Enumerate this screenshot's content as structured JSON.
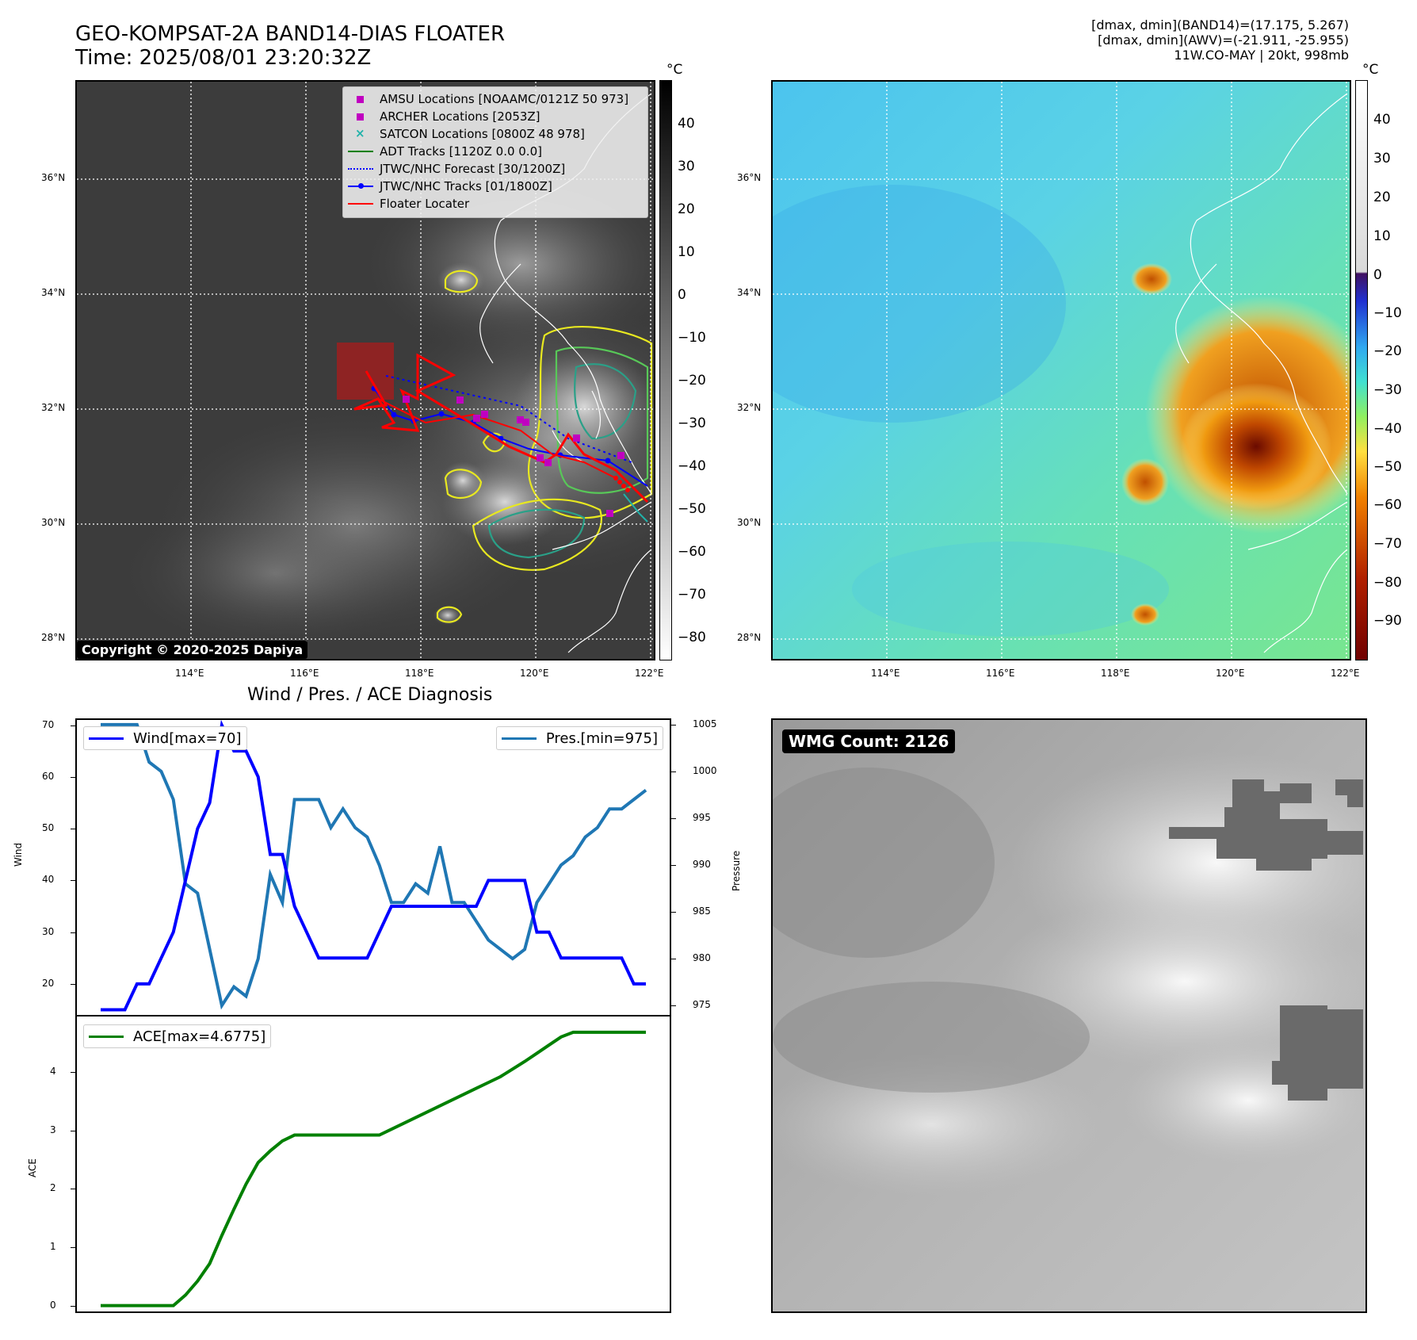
{
  "header": {
    "title": "GEO-KOMPSAT-2A BAND14-DIAS FLOATER",
    "time": "Time: 2025/08/01 23:20:32Z",
    "info_line1": "[dmax, dmin](BAND14)=(17.175, 5.267)",
    "info_line2": "[dmax, dmin](AWV)=(-21.911, -25.955)",
    "info_line3": "11W.CO-MAY | 20kt, 998mb"
  },
  "map": {
    "lat_ticks": [
      "36°N",
      "34°N",
      "32°N",
      "30°N",
      "28°N"
    ],
    "lon_ticks": [
      "114°E",
      "116°E",
      "118°E",
      "120°E",
      "122°E"
    ],
    "copyright": "Copyright © 2020-2025 Dapiya",
    "unit": "°C",
    "legend": [
      {
        "label": "AMSU Locations [NOAAMC/0121Z 50 973]",
        "symbol": "square",
        "color": "#c000c0"
      },
      {
        "label": "ARCHER Locations [2053Z]",
        "symbol": "square",
        "color": "#c000c0"
      },
      {
        "label": "SATCON Locations [0800Z 48 978]",
        "symbol": "x",
        "color": "#20b2aa"
      },
      {
        "label": "ADT Tracks [1120Z 0.0 0.0]",
        "symbol": "line",
        "color": "#008000"
      },
      {
        "label": "JTWC/NHC Forecast [30/1200Z]",
        "symbol": "dotted",
        "color": "#0000ff"
      },
      {
        "label": "JTWC/NHC Tracks [01/1800Z]",
        "symbol": "line-dot",
        "color": "#0000ff"
      },
      {
        "label": "Floater Locater",
        "symbol": "line",
        "color": "#ff0000"
      }
    ],
    "colorbar_ir": [
      "40",
      "30",
      "20",
      "10",
      "0",
      "−10",
      "−20",
      "−30",
      "−40",
      "−50",
      "−60",
      "−70",
      "−80"
    ],
    "colorbar_wv": [
      "40",
      "30",
      "20",
      "10",
      "0",
      "−10",
      "−20",
      "−30",
      "−40",
      "−50",
      "−60",
      "−70",
      "−80",
      "−90"
    ]
  },
  "diag": {
    "title": "Wind / Pres. / ACE Diagnosis",
    "wind_label": "Wind",
    "pressure_label": "Pressure",
    "ace_label": "ACE",
    "wind_legend": "Wind[max=70]",
    "pres_legend": "Pres.[min=975]",
    "ace_legend": "ACE[max=4.6775]"
  },
  "wmg": {
    "label": "WMG Count: 2126"
  },
  "colors": {
    "wind": "#0000ff",
    "pressure": "#1f77b4",
    "ace": "#008000",
    "floater": "#ff0000"
  },
  "chart_data": [
    {
      "type": "line",
      "title": "Wind / Pres. / ACE Diagnosis",
      "ylabel": "Wind",
      "y2label": "Pressure",
      "ylim": [
        14,
        71
      ],
      "y2lim": [
        974,
        1005.5
      ],
      "yticks": [
        20,
        30,
        40,
        50,
        60,
        70
      ],
      "y2ticks": [
        975,
        980,
        985,
        990,
        995,
        1000,
        1005
      ],
      "x": [
        0,
        1,
        2,
        3,
        4,
        5,
        6,
        7,
        8,
        9,
        10,
        11,
        12,
        13,
        14,
        15,
        16,
        17,
        18,
        19,
        20,
        21,
        22,
        23,
        24,
        25,
        26,
        27,
        28,
        29,
        30,
        31,
        32,
        33,
        34,
        35,
        36,
        37,
        38,
        39,
        40,
        41,
        42,
        43,
        44,
        45
      ],
      "series": [
        {
          "name": "Wind[max=70]",
          "axis": "left",
          "values": [
            15,
            15,
            15,
            20,
            20,
            25,
            30,
            40,
            50,
            55,
            70,
            65,
            65,
            60,
            45,
            45,
            35,
            30,
            25,
            25,
            25,
            25,
            25,
            30,
            35,
            35,
            35,
            35,
            35,
            35,
            35,
            35,
            40,
            40,
            40,
            40,
            30,
            30,
            25,
            25,
            25,
            25,
            25,
            25,
            20,
            20
          ]
        },
        {
          "name": "Pres.[min=975]",
          "axis": "right",
          "values": [
            1005,
            1005,
            1005,
            1005,
            1001,
            1000,
            997,
            988,
            987,
            981,
            975,
            977,
            976,
            980,
            989,
            986,
            997,
            997,
            997,
            994,
            996,
            994,
            993,
            990,
            986,
            986,
            988,
            987,
            992,
            986,
            986,
            984,
            982,
            981,
            980,
            981,
            986,
            988,
            990,
            991,
            993,
            994,
            996,
            996,
            997,
            998
          ]
        }
      ]
    },
    {
      "type": "line",
      "ylabel": "ACE",
      "ylim": [
        -0.1,
        4.95
      ],
      "yticks": [
        0,
        1,
        2,
        3,
        4
      ],
      "x": [
        0,
        1,
        2,
        3,
        4,
        5,
        6,
        7,
        8,
        9,
        10,
        11,
        12,
        13,
        14,
        15,
        16,
        17,
        18,
        19,
        20,
        21,
        22,
        23,
        24,
        25,
        26,
        27,
        28,
        29,
        30,
        31,
        32,
        33,
        34,
        35,
        36,
        37,
        38,
        39,
        40,
        41,
        42,
        43,
        44,
        45
      ],
      "series": [
        {
          "name": "ACE[max=4.6775]",
          "values": [
            0,
            0,
            0,
            0,
            0,
            0,
            0,
            0.18,
            0.42,
            0.72,
            1.2,
            1.65,
            2.08,
            2.45,
            2.65,
            2.82,
            2.92,
            2.92,
            2.92,
            2.92,
            2.92,
            2.92,
            2.92,
            2.92,
            3.02,
            3.12,
            3.22,
            3.32,
            3.42,
            3.52,
            3.62,
            3.72,
            3.82,
            3.92,
            4.05,
            4.18,
            4.32,
            4.46,
            4.6,
            4.68,
            4.68,
            4.68,
            4.68,
            4.68,
            4.68,
            4.68
          ]
        }
      ]
    }
  ]
}
